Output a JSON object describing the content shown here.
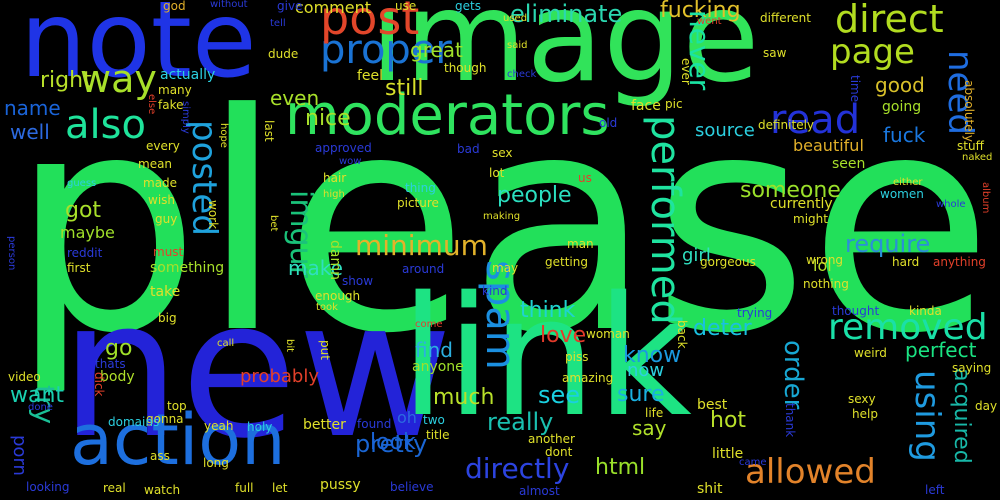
{
  "words": [
    {
      "text": "please",
      "color": "#22e05a"
    },
    {
      "text": "new",
      "color": "#2323d8"
    },
    {
      "text": "link",
      "color": "#1de383"
    },
    {
      "text": "image",
      "color": "#31e35a"
    },
    {
      "text": "note",
      "color": "#1f34e6"
    },
    {
      "text": "action",
      "color": "#1d6fde"
    },
    {
      "text": "moderators",
      "color": "#2fe35f"
    },
    {
      "text": "proper",
      "color": "#1a73d4"
    },
    {
      "text": "post",
      "color": "#e2462a"
    },
    {
      "text": "direct",
      "color": "#b2dc20"
    },
    {
      "text": "page",
      "color": "#b2dc20"
    },
    {
      "text": "way",
      "color": "#a8e02a"
    },
    {
      "text": "also",
      "color": "#1fe39b"
    },
    {
      "text": "read",
      "color": "#2332d8"
    },
    {
      "text": "need",
      "color": "#1f6de0"
    },
    {
      "text": "removed",
      "color": "#1ae0a8"
    },
    {
      "text": "posted",
      "color": "#1fa2dc"
    },
    {
      "text": "performed",
      "color": "#1fe3a0"
    },
    {
      "text": "spam",
      "color": "#1b8fe0"
    },
    {
      "text": "allowed",
      "color": "#e2832a"
    },
    {
      "text": "using",
      "color": "#1f9be0"
    },
    {
      "text": "imgur",
      "color": "#1ac27a"
    },
    {
      "text": "minimum",
      "color": "#e2b22a"
    },
    {
      "text": "directly",
      "color": "#2c44e0"
    },
    {
      "text": "eliminate",
      "color": "#2bd8b0"
    },
    {
      "text": "fucking",
      "color": "#e2c02a"
    },
    {
      "text": "never",
      "color": "#1ae3a3"
    },
    {
      "text": "require",
      "color": "#2b8fd8"
    },
    {
      "text": "order",
      "color": "#18a8d4"
    },
    {
      "text": "acquired",
      "color": "#18b8a8"
    },
    {
      "text": "pretty",
      "color": "#1a66d4"
    },
    {
      "text": "html",
      "color": "#9ae02a"
    },
    {
      "text": "try",
      "color": "#1ac096"
    },
    {
      "text": "someone",
      "color": "#9ae02a"
    },
    {
      "text": "people",
      "color": "#2bdfc0"
    },
    {
      "text": "think",
      "color": "#1fd3d0"
    },
    {
      "text": "love",
      "color": "#e23a2a"
    },
    {
      "text": "deter",
      "color": "#1ac0e0"
    },
    {
      "text": "perfect",
      "color": "#1ae383"
    },
    {
      "text": "know",
      "color": "#1a9ae0"
    },
    {
      "text": "hot",
      "color": "#b8e02a"
    },
    {
      "text": "sure",
      "color": "#1ab0e0"
    },
    {
      "text": "say",
      "color": "#b0e02a"
    },
    {
      "text": "really",
      "color": "#1ac0b0"
    },
    {
      "text": "see",
      "color": "#1ad0e0"
    },
    {
      "text": "much",
      "color": "#b8e02a"
    },
    {
      "text": "look",
      "color": "#1a64d8"
    },
    {
      "text": "find",
      "color": "#2cb0e0"
    },
    {
      "text": "want",
      "color": "#1ad0b0"
    },
    {
      "text": "go",
      "color": "#a0e02a"
    },
    {
      "text": "got",
      "color": "#a8e02a"
    },
    {
      "text": "make",
      "color": "#30dfc0"
    },
    {
      "text": "nice",
      "color": "#a8e02a"
    },
    {
      "text": "still",
      "color": "#d8e02a"
    },
    {
      "text": "even",
      "color": "#a8e02a"
    },
    {
      "text": "right",
      "color": "#b8e02a"
    },
    {
      "text": "well",
      "color": "#2c6ae0"
    },
    {
      "text": "name",
      "color": "#1a64d8"
    },
    {
      "text": "good",
      "color": "#d8c02a"
    },
    {
      "text": "fuck",
      "color": "#1a78e0"
    },
    {
      "text": "source",
      "color": "#2cd0e0"
    },
    {
      "text": "great",
      "color": "#a0e02a"
    },
    {
      "text": "probably",
      "color": "#e2402a"
    },
    {
      "text": "porn",
      "color": "#2a3ad8"
    },
    {
      "text": "girl",
      "color": "#30e0c0"
    },
    {
      "text": "lol",
      "color": "#b8e02a"
    },
    {
      "text": "comment",
      "color": "#dfe02a"
    },
    {
      "text": "maybe",
      "color": "#a0e02a"
    },
    {
      "text": "beautiful",
      "color": "#e2b02a"
    },
    {
      "text": "anyone",
      "color": "#a0e02a"
    },
    {
      "text": "seen",
      "color": "#a8e02a"
    },
    {
      "text": "body",
      "color": "#b0e02a"
    },
    {
      "text": "take",
      "color": "#dfe02a"
    },
    {
      "text": "something",
      "color": "#a8e02a"
    },
    {
      "text": "going",
      "color": "#a8e02a"
    },
    {
      "text": "actually",
      "color": "#2cd0e0"
    },
    {
      "text": "use",
      "color": "#dfe02a"
    },
    {
      "text": "now",
      "color": "#2cd0e0"
    },
    {
      "text": "oh",
      "color": "#2c6ae0"
    },
    {
      "text": "damn",
      "color": "#a8e02a"
    },
    {
      "text": "currently",
      "color": "#dfe02a"
    },
    {
      "text": "women",
      "color": "#2cd0e0"
    },
    {
      "text": "make sure",
      "color": "#000000"
    },
    {
      "text": "god",
      "color": "#e2b02a"
    },
    {
      "text": "give",
      "color": "#2a3ad8"
    },
    {
      "text": "tell",
      "color": "#2a3ad8"
    },
    {
      "text": "without",
      "color": "#2a3ad8"
    },
    {
      "text": "gets",
      "color": "#2cd0e0"
    },
    {
      "text": "used",
      "color": "#dfe02a"
    },
    {
      "text": "said",
      "color": "#dfe02a"
    },
    {
      "text": "went",
      "color": "#e2402a"
    },
    {
      "text": "different",
      "color": "#dfe02a"
    },
    {
      "text": "dude",
      "color": "#dfe02a"
    },
    {
      "text": "feel",
      "color": "#dfe02a"
    },
    {
      "text": "though",
      "color": "#dfe02a"
    },
    {
      "text": "check",
      "color": "#2a3ad8"
    },
    {
      "text": "ever",
      "color": "#dfe02a"
    },
    {
      "text": "saw",
      "color": "#dfe02a"
    },
    {
      "text": "time",
      "color": "#2a3ad8"
    },
    {
      "text": "absolutely",
      "color": "#e2b02a"
    },
    {
      "text": "many",
      "color": "#dfe02a"
    },
    {
      "text": "fake",
      "color": "#dfe02a"
    },
    {
      "text": "simply",
      "color": "#2a3ad8"
    },
    {
      "text": "else",
      "color": "#e2402a"
    },
    {
      "text": "face",
      "color": "#dfe02a"
    },
    {
      "text": "pic",
      "color": "#dfe02a"
    },
    {
      "text": "old",
      "color": "#2a3ad8"
    },
    {
      "text": "definitely",
      "color": "#dfe02a"
    },
    {
      "text": "hope",
      "color": "#dfe02a"
    },
    {
      "text": "last",
      "color": "#dfe02a"
    },
    {
      "text": "every",
      "color": "#dfe02a"
    },
    {
      "text": "mean",
      "color": "#dfe02a"
    },
    {
      "text": "approved",
      "color": "#2a3ad8"
    },
    {
      "text": "wow",
      "color": "#2a3ad8"
    },
    {
      "text": "bad",
      "color": "#2a3ad8"
    },
    {
      "text": "sex",
      "color": "#dfe02a"
    },
    {
      "text": "stuff",
      "color": "#dfe02a"
    },
    {
      "text": "naked",
      "color": "#dfe02a"
    },
    {
      "text": "made",
      "color": "#dfe02a"
    },
    {
      "text": "hair",
      "color": "#dfe02a"
    },
    {
      "text": "lot",
      "color": "#dfe02a"
    },
    {
      "text": "us",
      "color": "#e2402a"
    },
    {
      "text": "wish",
      "color": "#dfe02a"
    },
    {
      "text": "high",
      "color": "#dfe02a"
    },
    {
      "text": "guess",
      "color": "#2cd0e0"
    },
    {
      "text": "thing",
      "color": "#2cd0e0"
    },
    {
      "text": "either",
      "color": "#dfe02a"
    },
    {
      "text": "album",
      "color": "#e2402a"
    },
    {
      "text": "whole",
      "color": "#2a3ad8"
    },
    {
      "text": "guy",
      "color": "#dfe02a"
    },
    {
      "text": "picture",
      "color": "#dfe02a"
    },
    {
      "text": "making",
      "color": "#dfe02a"
    },
    {
      "text": "work",
      "color": "#dfe02a"
    },
    {
      "text": "bet",
      "color": "#dfe02a"
    },
    {
      "text": "person",
      "color": "#2a3ad8"
    },
    {
      "text": "reddit",
      "color": "#2a3ad8"
    },
    {
      "text": "must",
      "color": "#e2402a"
    },
    {
      "text": "first",
      "color": "#dfe02a"
    },
    {
      "text": "might",
      "color": "#dfe02a"
    },
    {
      "text": "wrong",
      "color": "#dfe02a"
    },
    {
      "text": "gorgeous",
      "color": "#dfe02a"
    },
    {
      "text": "hard",
      "color": "#dfe02a"
    },
    {
      "text": "anything",
      "color": "#e2402a"
    },
    {
      "text": "around",
      "color": "#2a3ad8"
    },
    {
      "text": "man",
      "color": "#dfe02a"
    },
    {
      "text": "getting",
      "color": "#dfe02a"
    },
    {
      "text": "may",
      "color": "#dfe02a"
    },
    {
      "text": "show",
      "color": "#2a3ad8"
    },
    {
      "text": "enough",
      "color": "#dfe02a"
    },
    {
      "text": "kind",
      "color": "#2a3ad8"
    },
    {
      "text": "nothing",
      "color": "#dfe02a"
    },
    {
      "text": "big",
      "color": "#dfe02a"
    },
    {
      "text": "took",
      "color": "#dfe02a"
    },
    {
      "text": "back",
      "color": "#dfe02a"
    },
    {
      "text": "thought",
      "color": "#2a3ad8"
    },
    {
      "text": "trying",
      "color": "#2a3ad8"
    },
    {
      "text": "kinda",
      "color": "#dfe02a"
    },
    {
      "text": "come",
      "color": "#e2402a"
    },
    {
      "text": "woman",
      "color": "#dfe02a"
    },
    {
      "text": "call",
      "color": "#dfe02a"
    },
    {
      "text": "bit",
      "color": "#dfe02a"
    },
    {
      "text": "put",
      "color": "#dfe02a"
    },
    {
      "text": "piss",
      "color": "#dfe02a"
    },
    {
      "text": "thats",
      "color": "#2a3ad8"
    },
    {
      "text": "weird",
      "color": "#dfe02a"
    },
    {
      "text": "video",
      "color": "#dfe02a"
    },
    {
      "text": "amazing",
      "color": "#dfe02a"
    },
    {
      "text": "saying",
      "color": "#dfe02a"
    },
    {
      "text": "sexy",
      "color": "#dfe02a"
    },
    {
      "text": "done",
      "color": "#2a3ad8"
    },
    {
      "text": "dick",
      "color": "#e2402a"
    },
    {
      "text": "gonna",
      "color": "#dfe02a"
    },
    {
      "text": "top",
      "color": "#dfe02a"
    },
    {
      "text": "holy",
      "color": "#2cd0e0"
    },
    {
      "text": "better",
      "color": "#dfe02a"
    },
    {
      "text": "two",
      "color": "#2cd0e0"
    },
    {
      "text": "found",
      "color": "#2a3ad8"
    },
    {
      "text": "title",
      "color": "#dfe02a"
    },
    {
      "text": "life",
      "color": "#dfe02a"
    },
    {
      "text": "best",
      "color": "#dfe02a"
    },
    {
      "text": "help",
      "color": "#dfe02a"
    },
    {
      "text": "day",
      "color": "#dfe02a"
    },
    {
      "text": "domains",
      "color": "#2cd0e0"
    },
    {
      "text": "yeah",
      "color": "#dfe02a"
    },
    {
      "text": "ass",
      "color": "#dfe02a"
    },
    {
      "text": "another",
      "color": "#dfe02a"
    },
    {
      "text": "dont",
      "color": "#dfe02a"
    },
    {
      "text": "little",
      "color": "#dfe02a"
    },
    {
      "text": "thank",
      "color": "#2a3ad8"
    },
    {
      "text": "came",
      "color": "#2a3ad8"
    },
    {
      "text": "long",
      "color": "#dfe02a"
    },
    {
      "text": "shit",
      "color": "#dfe02a"
    },
    {
      "text": "left",
      "color": "#2a3ad8"
    },
    {
      "text": "looking",
      "color": "#2a3ad8"
    },
    {
      "text": "real",
      "color": "#dfe02a"
    },
    {
      "text": "watch",
      "color": "#dfe02a"
    },
    {
      "text": "full",
      "color": "#dfe02a"
    },
    {
      "text": "let",
      "color": "#dfe02a"
    },
    {
      "text": "pussy",
      "color": "#dfe02a"
    },
    {
      "text": "believe",
      "color": "#2a3ad8"
    },
    {
      "text": "almost",
      "color": "#2a3ad8"
    }
  ]
}
